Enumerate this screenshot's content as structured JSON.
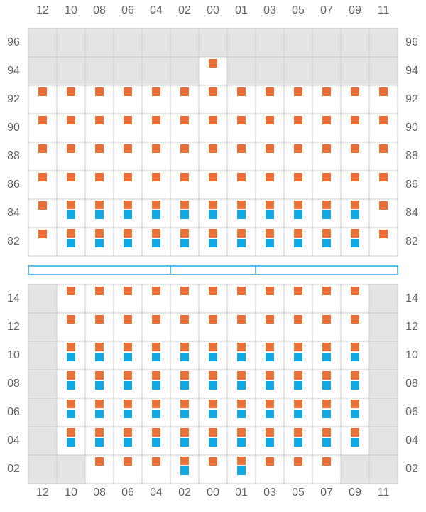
{
  "columns": [
    "12",
    "10",
    "08",
    "06",
    "04",
    "02",
    "00",
    "01",
    "03",
    "05",
    "07",
    "09",
    "11"
  ],
  "upper": {
    "rows": [
      "96",
      "94",
      "92",
      "90",
      "88",
      "86",
      "84",
      "82"
    ]
  },
  "lower": {
    "rows": [
      "14",
      "12",
      "10",
      "08",
      "06",
      "04",
      "02"
    ]
  }
}
